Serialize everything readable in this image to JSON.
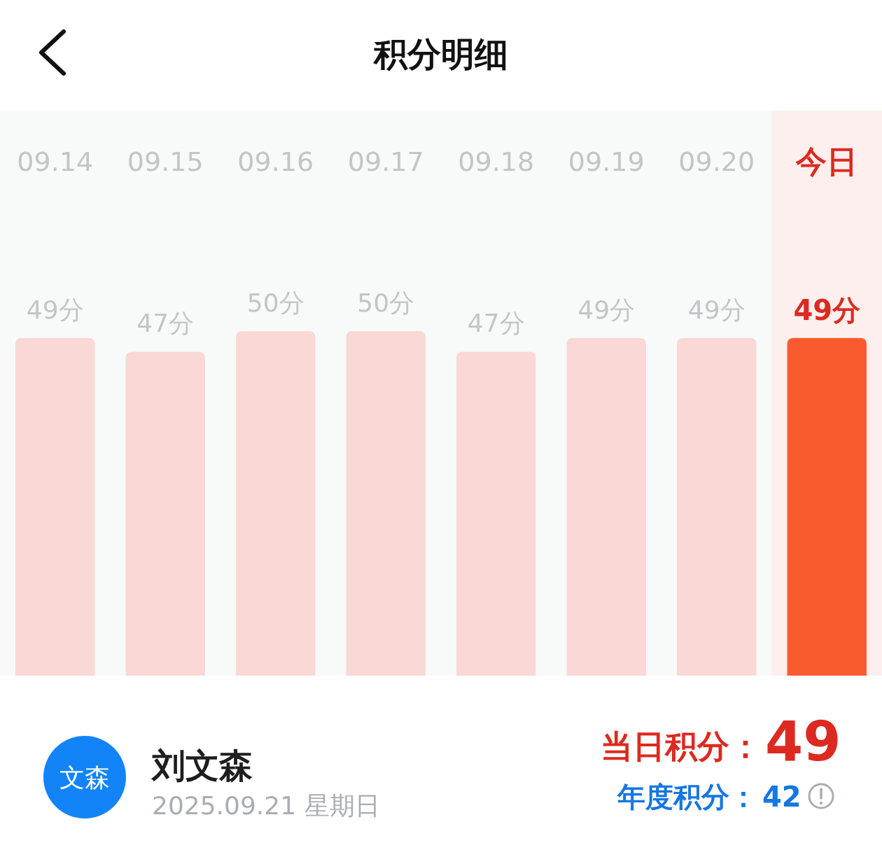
{
  "chart_data": {
    "type": "bar",
    "title": "积分明细",
    "categories": [
      "09.14",
      "09.15",
      "09.16",
      "09.17",
      "09.18",
      "09.19",
      "09.20",
      "今日"
    ],
    "values": [
      49,
      47,
      50,
      50,
      47,
      49,
      49,
      49
    ],
    "value_labels": [
      "49分",
      "47分",
      "50分",
      "50分",
      "47分",
      "49分",
      "49分",
      "49分"
    ],
    "colors": [
      "#f9d8d6",
      "#f9d8d6",
      "#f9d8d6",
      "#f9d8d6",
      "#f9d8d6",
      "#f9d8d6",
      "#f9d8d6",
      "#f95a2e"
    ],
    "ylim": [
      0,
      82
    ],
    "tick_labels": "x",
    "bands": [
      {
        "axis": "x",
        "from": "今日",
        "to": "今日",
        "color": "#fcefee"
      }
    ],
    "annotations": [
      "文森",
      "刘文森",
      "2025.09.21 星期日",
      "当日积分：",
      "49",
      "年度积分：",
      "42"
    ]
  }
}
